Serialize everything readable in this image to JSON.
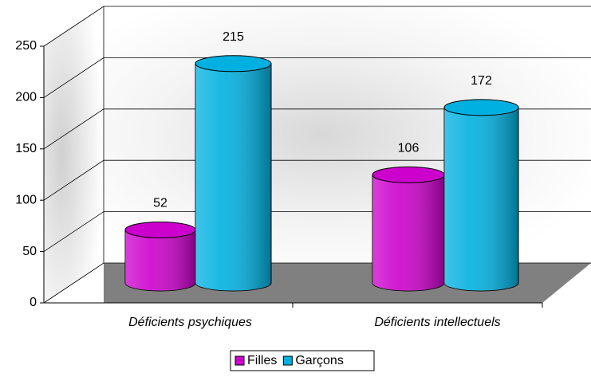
{
  "chart_data": {
    "type": "bar3d",
    "categories": [
      "Déficients psychiques",
      "Déficients intellectuels"
    ],
    "series": [
      {
        "name": "Filles",
        "color": "#cc00cc",
        "values": [
          52,
          106
        ]
      },
      {
        "name": "Garçons",
        "color": "#00b0e0",
        "values": [
          215,
          172
        ]
      }
    ],
    "ylim": [
      0,
      250
    ],
    "yticks": [
      0,
      50,
      100,
      150,
      200,
      250
    ],
    "grid": true,
    "legend": "bottom"
  }
}
